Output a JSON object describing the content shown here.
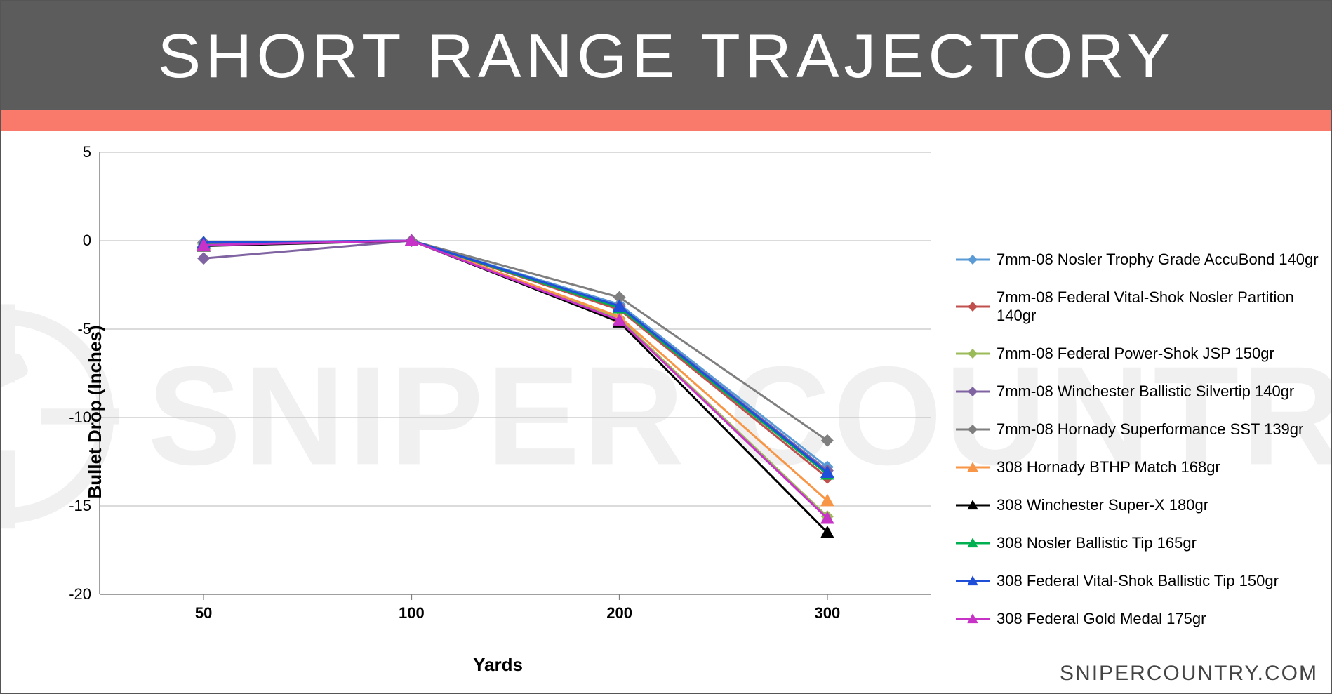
{
  "title": "SHORT RANGE TRAJECTORY",
  "footer_url": "SNIPERCOUNTRY.COM",
  "watermark_text": "SNIPER COUNTRY",
  "watermark_color": "#f0f0f0",
  "title_bar_color": "#5c5c5c",
  "accent_bar_color": "#f97a6b",
  "chart": {
    "type": "line",
    "background_color": "#ffffff",
    "grid_color": "#b7b7b7",
    "grid_stroke_width": 1,
    "plot_border_color": "#808080",
    "x_axis": {
      "label": "Yards",
      "categories": [
        "50",
        "100",
        "200",
        "300"
      ],
      "label_fontsize": 26,
      "label_fontweight": "bold",
      "tick_fontsize": 22,
      "tick_fontweight": "bold"
    },
    "y_axis": {
      "label": "Bullet Drop (Inches)",
      "ylim": [
        -20,
        5
      ],
      "ytick_step": 5,
      "ticks": [
        5,
        0,
        -5,
        -10,
        -15,
        -20
      ],
      "label_fontsize": 26,
      "label_fontweight": "bold",
      "tick_fontsize": 22,
      "tick_fontweight": "normal"
    },
    "marker_size": 9,
    "line_width": 3,
    "legend_fontsize": 22,
    "series": [
      {
        "name": "7mm-08 Nosler Trophy Grade AccuBond 140gr",
        "color": "#5b9bd5",
        "marker": "diamond",
        "values": [
          -0.1,
          0,
          -3.6,
          -12.8
        ]
      },
      {
        "name": "7mm-08 Federal Vital-Shok Nosler Partition 140gr",
        "color": "#c0504d",
        "marker": "diamond",
        "values": [
          -0.15,
          0,
          -3.9,
          -13.4
        ]
      },
      {
        "name": "7mm-08 Federal Power-Shok JSP 150gr",
        "color": "#9bbb59",
        "marker": "diamond",
        "values": [
          -0.2,
          0,
          -4.4,
          -15.6
        ]
      },
      {
        "name": "7mm-08 Winchester Ballistic Silvertip 140gr",
        "color": "#8064a2",
        "marker": "diamond",
        "values": [
          -1.0,
          0,
          -3.7,
          -13.0
        ]
      },
      {
        "name": "7mm-08 Hornady Superformance SST 139gr",
        "color": "#7f7f7f",
        "marker": "diamond",
        "values": [
          -0.1,
          0,
          -3.2,
          -11.3
        ]
      },
      {
        "name": "308 Hornady BTHP Match 168gr",
        "color": "#f79646",
        "marker": "triangle",
        "values": [
          -0.2,
          0,
          -4.3,
          -14.7
        ]
      },
      {
        "name": "308 Winchester Super-X 180gr",
        "color": "#000000",
        "marker": "triangle",
        "values": [
          -0.3,
          0,
          -4.6,
          -16.5
        ]
      },
      {
        "name": "308 Nosler Ballistic Tip 165gr",
        "color": "#00b050",
        "marker": "triangle",
        "values": [
          -0.15,
          0,
          -3.8,
          -13.2
        ]
      },
      {
        "name": "308 Federal Vital-Shok Ballistic Tip 150gr",
        "color": "#1f4ed8",
        "marker": "triangle",
        "values": [
          -0.1,
          0,
          -3.7,
          -13.1
        ]
      },
      {
        "name": "308 Federal Gold Medal 175gr",
        "color": "#c733c7",
        "marker": "triangle",
        "values": [
          -0.25,
          0,
          -4.5,
          -15.7
        ]
      }
    ]
  }
}
